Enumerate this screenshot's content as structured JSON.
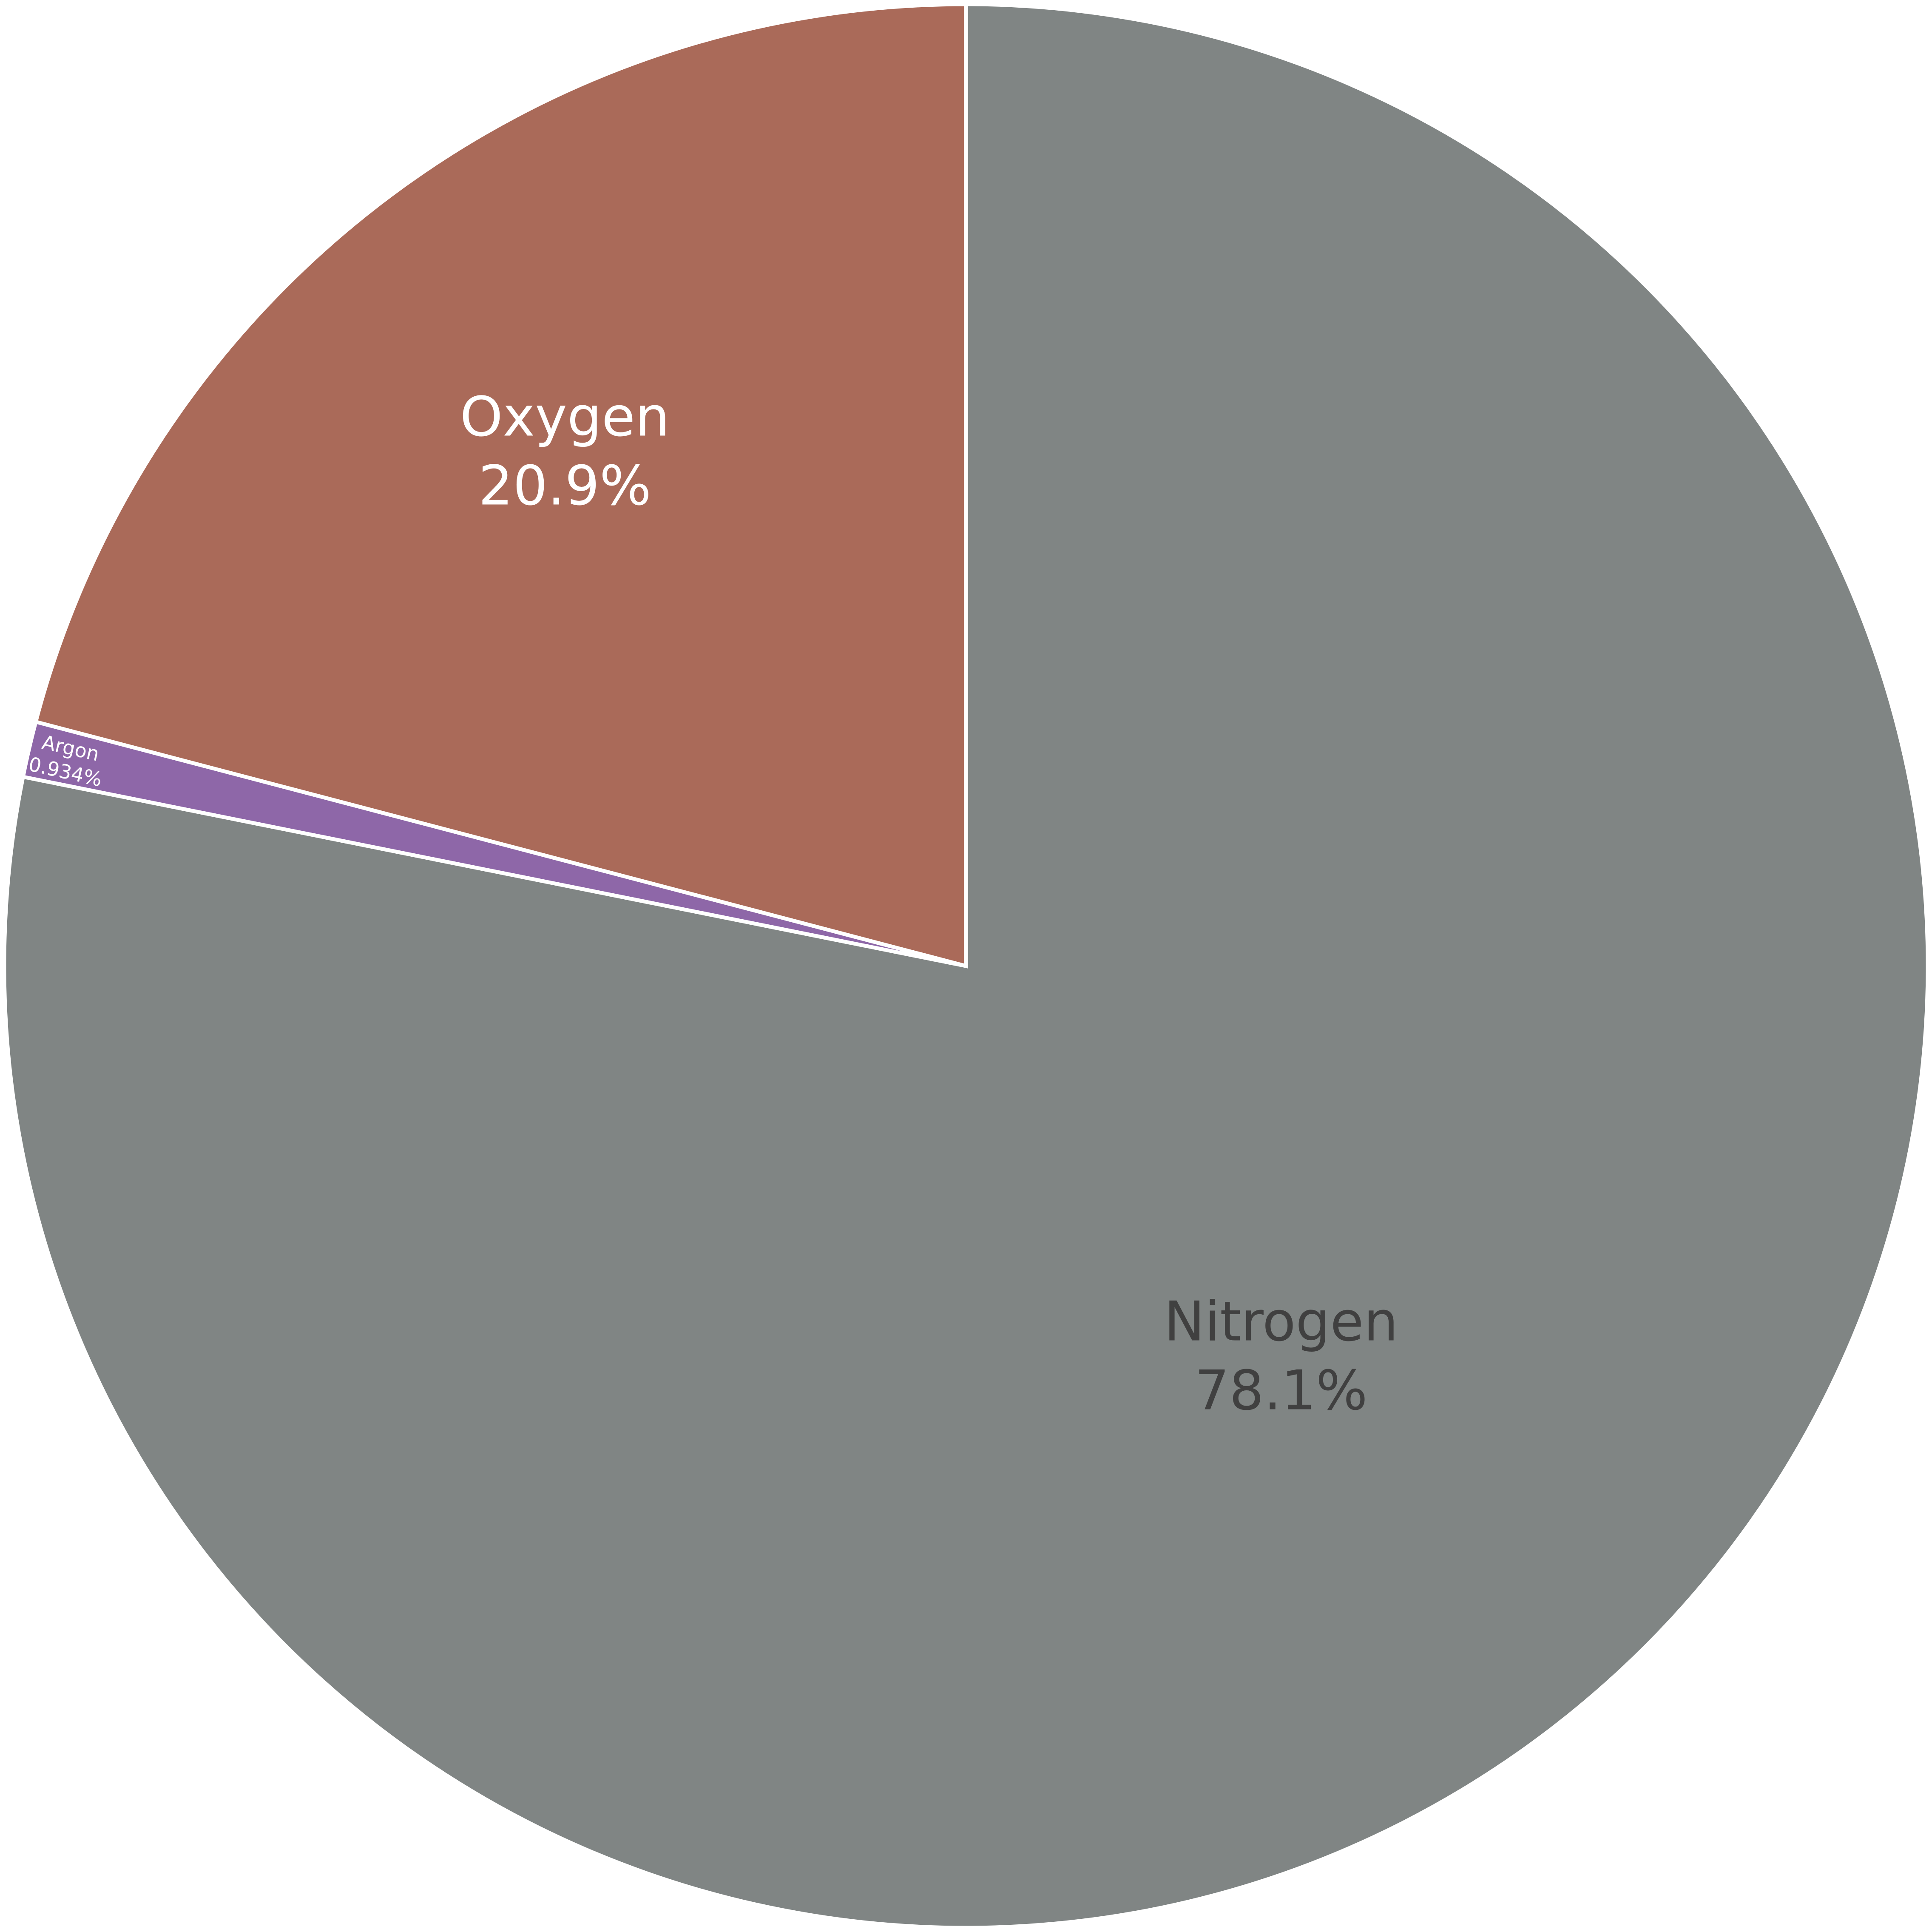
{
  "chart_data": {
    "type": "pie",
    "title": "",
    "slices": [
      {
        "label": "Nitrogen",
        "value": 78.1,
        "value_label": "78.1%",
        "color": "#808584",
        "text_color": "#404040"
      },
      {
        "label": "Argon",
        "value": 0.934,
        "value_label": "0.934%",
        "color": "#8e67a8",
        "text_color": "#ffffff"
      },
      {
        "label": "Oxygen",
        "value": 20.9,
        "value_label": "20.9%",
        "color": "#aa6a59",
        "text_color": "#ffffff"
      }
    ],
    "start_angle": "12 o'clock",
    "direction": "clockwise",
    "labels_inside": true,
    "legend": "none"
  }
}
